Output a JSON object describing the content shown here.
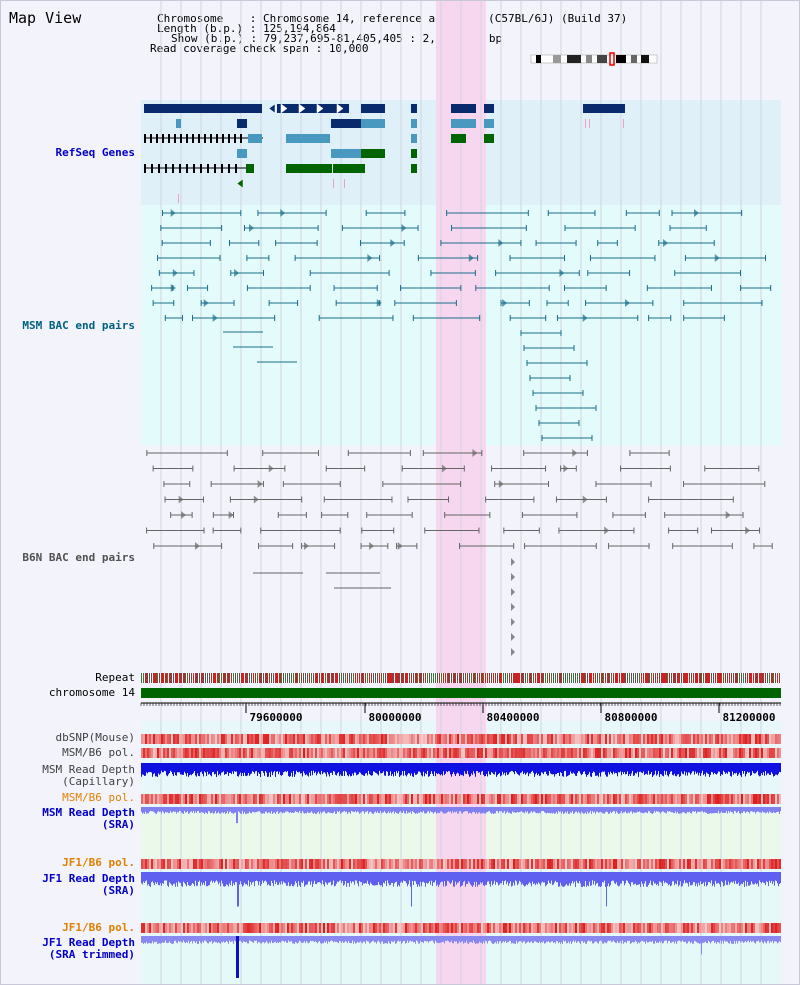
{
  "title": "Map View",
  "info": {
    "chromosome_key": "Chromosome    :",
    "chromosome": "Chromosome 14, reference assembly (C57BL/6J) (Build 37)",
    "length_key": "Length (b.p.) :",
    "length": "125,194,864",
    "show_key": "Show (b.p.) :",
    "show": "79,237,695-81,405,405 : 2,167,711 bp",
    "span_key": "Read coverage check span :",
    "span": "10,000"
  },
  "tracks": {
    "refseq": "RefSeq Genes",
    "msm_bac": "MSM BAC end pairs",
    "b6n_bac": "B6N BAC end pairs",
    "repeat": "Repeat",
    "chromosome": "chromosome 14",
    "dbsnp": "dbSNP(Mouse)",
    "msm_b6_pol": "MSM/B6 pol.",
    "msm_depth_cap_1": "MSM Read Depth",
    "msm_depth_cap_2": "(Capillary)",
    "msm_b6_pol2": "MSM/B6 pol.",
    "msm_depth_sra_1": "MSM Read Depth",
    "msm_depth_sra_2": "(SRA)",
    "jf1_b6_pol": "JF1/B6 pol.",
    "jf1_depth_sra_1": "JF1 Read Depth",
    "jf1_depth_sra_2": "(SRA)",
    "jf1_b6_pol2": "JF1/B6 pol.",
    "jf1_depth_trim_1": "JF1 Read Depth",
    "jf1_depth_trim_2": "(SRA trimmed)"
  },
  "axis": {
    "ticks": [
      "79600000",
      "80000000",
      "80400000",
      "80800000",
      "81200000"
    ]
  },
  "colors": {
    "refseq_bg": "#dff0f9",
    "msm_bg": "#e4fbfb",
    "highlight": "#f7d6ef",
    "refseq_label": "#0000c8",
    "msm_label": "#006080",
    "b6n_label": "#505050",
    "chrom_bar": "#006400",
    "depth_blue": "#1010e0",
    "depth_light": "#8080f0",
    "jf1_label": "#e08000"
  }
}
